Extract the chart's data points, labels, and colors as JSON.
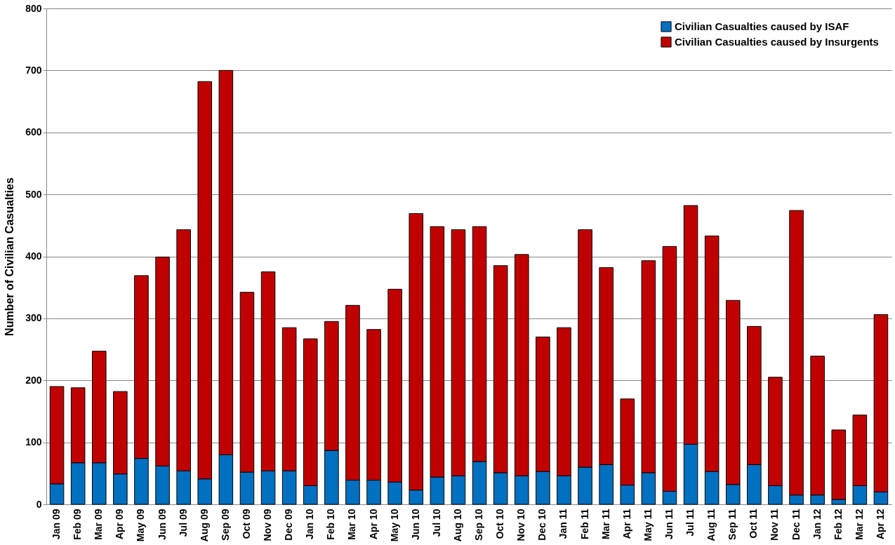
{
  "chart_data": {
    "type": "bar",
    "stacked": true,
    "ylabel": "Number of Civilian Casualties",
    "categories": [
      "Jan 09",
      "Feb 09",
      "Mar 09",
      "Apr 09",
      "May 09",
      "Jun 09",
      "Jul 09",
      "Aug 09",
      "Sep 09",
      "Oct 09",
      "Nov 09",
      "Dec 09",
      "Jan 10",
      "Feb 10",
      "Mar 10",
      "Apr 10",
      "May 10",
      "Jun 10",
      "Jul 10",
      "Aug 10",
      "Sep 10",
      "Oct 10",
      "Nov 10",
      "Dec 10",
      "Jan 11",
      "Feb 11",
      "Mar 11",
      "Apr 11",
      "May 11",
      "Jun 11",
      "Jul 11",
      "Aug 11",
      "Sep 11",
      "Oct 11",
      "Nov 11",
      "Dec 11",
      "Jan 12",
      "Feb 12",
      "Mar 12",
      "Apr 12"
    ],
    "series": [
      {
        "name": "Civilian Casualties caused by ISAF",
        "color": "#0070c0",
        "values": [
          33,
          67,
          67,
          49,
          74,
          62,
          54,
          41,
          80,
          52,
          54,
          54,
          30,
          87,
          39,
          39,
          36,
          23,
          44,
          46,
          69,
          51,
          46,
          53,
          46,
          60,
          64,
          31,
          51,
          21,
          97,
          53,
          32,
          64,
          30,
          15,
          15,
          8,
          30,
          20
        ]
      },
      {
        "name": "Civilian Casualties caused by Insurgents",
        "color": "#c00000",
        "values": [
          157,
          121,
          180,
          133,
          295,
          337,
          389,
          641,
          620,
          290,
          321,
          231,
          237,
          208,
          282,
          243,
          311,
          446,
          404,
          397,
          379,
          334,
          357,
          217,
          239,
          383,
          318,
          139,
          342,
          395,
          385,
          380,
          297,
          223,
          175,
          459,
          224,
          112,
          114,
          286
        ]
      }
    ],
    "ylim": [
      0,
      800
    ],
    "yticks": [
      0,
      100,
      200,
      300,
      400,
      500,
      600,
      700,
      800
    ],
    "grid": "y",
    "legend": "top right"
  }
}
